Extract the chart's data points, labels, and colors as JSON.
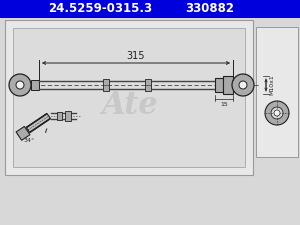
{
  "header_text1": "24.5259-0315.3",
  "header_text2": "330882",
  "header_bg": "#0000dd",
  "header_text_color": "#ffffff",
  "bg_color": "#d8d8d8",
  "drawing_bg": "#e8e8e8",
  "drawing_bg2": "#dcdcdc",
  "border_color": "#999999",
  "dim_text": "315",
  "thread_text": "M10x1",
  "small_dim_text": "15",
  "angle_text": "34°",
  "hose_color": "#444444",
  "line_color": "#222222",
  "dim_line_color": "#222222",
  "watermark_color": "#bbbbbb",
  "fitting_color": "#aaaaaa",
  "fitting_dark": "#888888"
}
